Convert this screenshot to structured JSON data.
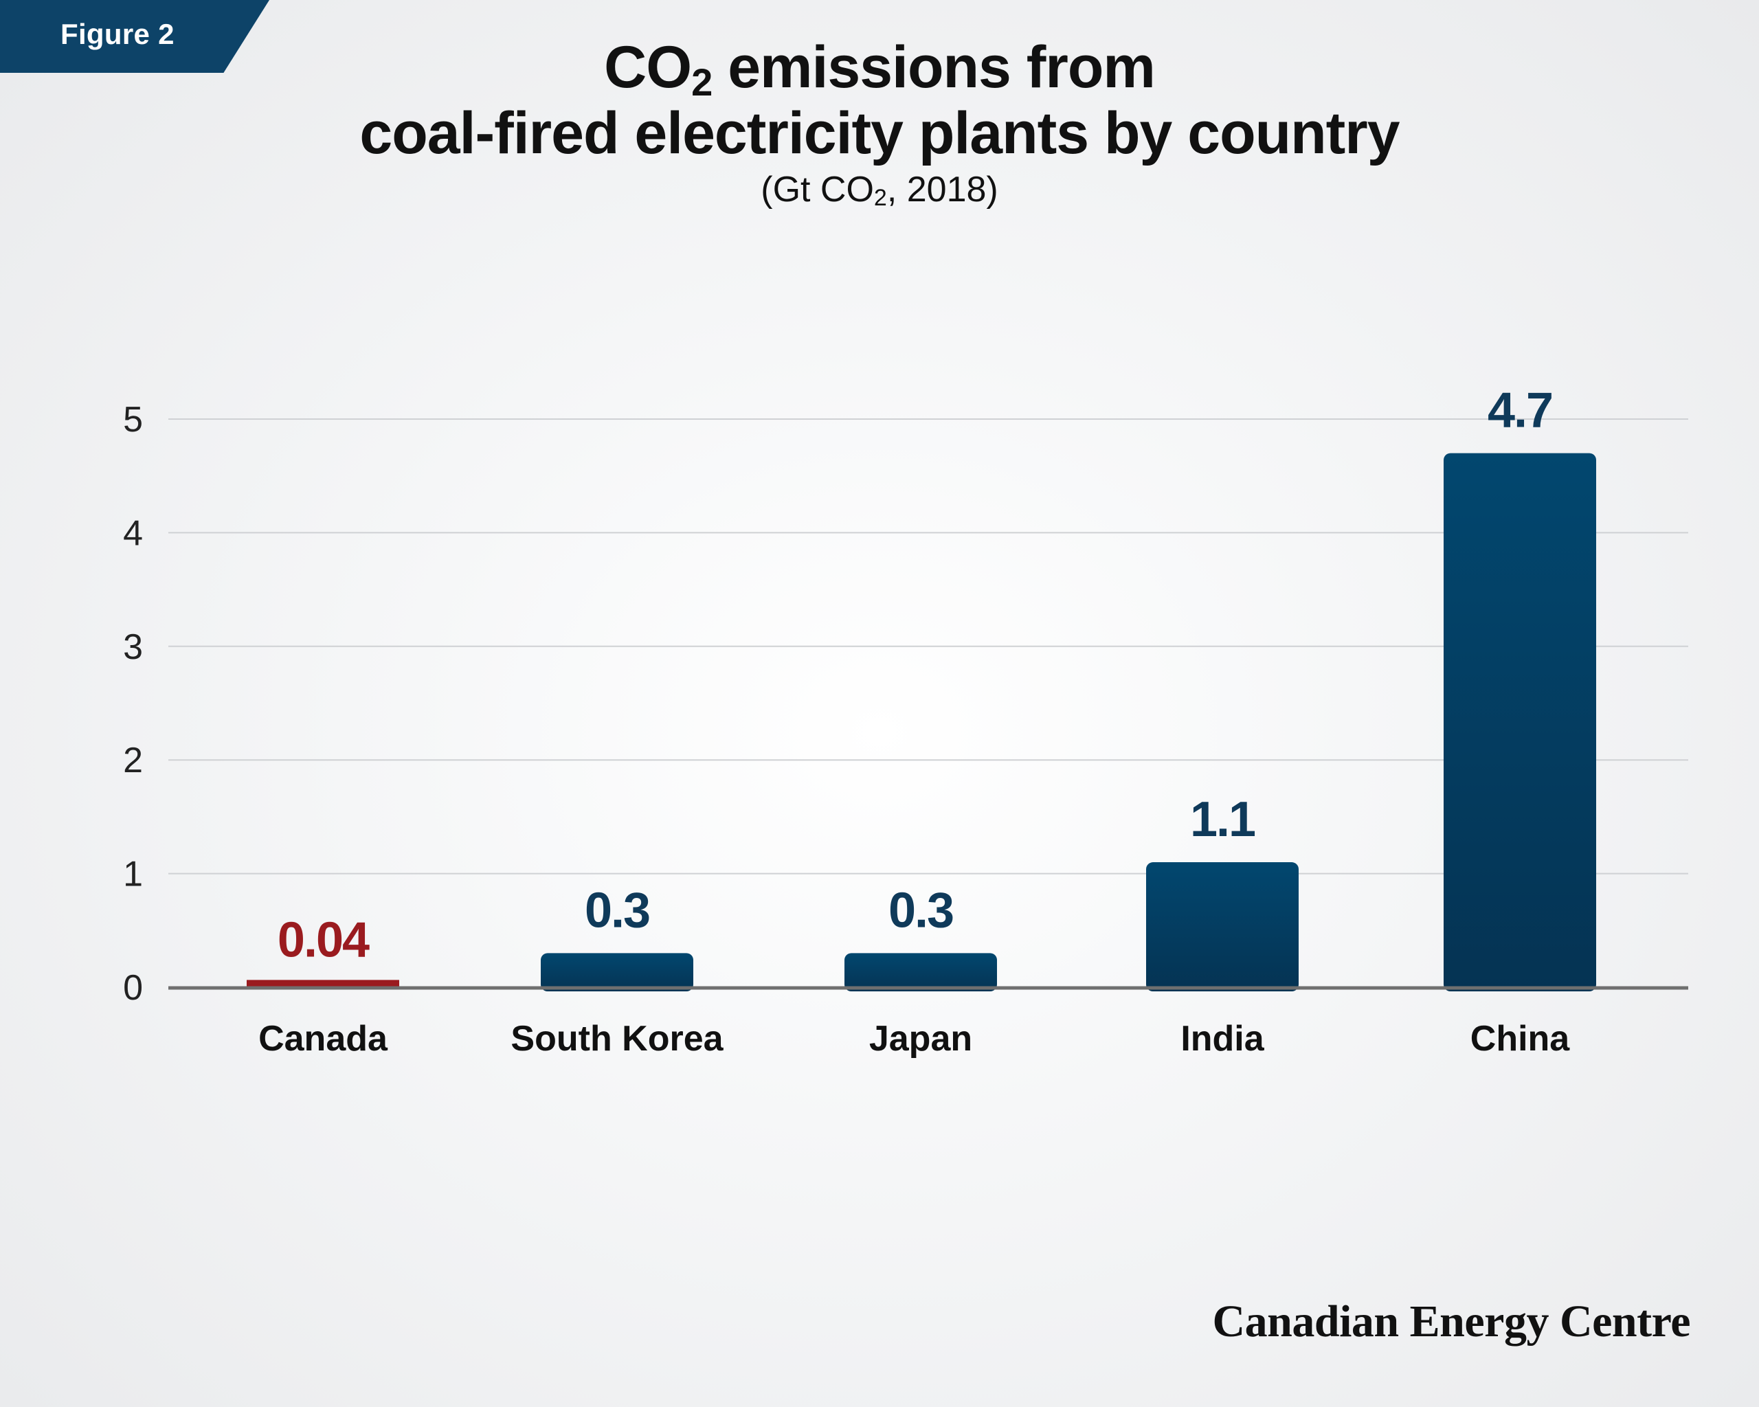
{
  "figure_label": "Figure 2",
  "title": {
    "part1_prefix": "CO",
    "part1_sub": "2",
    "part1_suffix": " emissions from",
    "line2": "coal-fired electricity plants by country"
  },
  "subtitle": {
    "prefix": "(Gt CO",
    "sub": "2",
    "suffix": ", 2018)"
  },
  "brand": "Canadian Energy Centre",
  "colors": {
    "bar_top": "#02476f",
    "bar_bottom": "#053353",
    "highlight": "#9a1b1f",
    "value_label": "#0f3a5a",
    "axis": "#6f6f6f",
    "grid": "#cfd1d4"
  },
  "chart_data": {
    "type": "bar",
    "categories": [
      "Canada",
      "South Korea",
      "Japan",
      "India",
      "China"
    ],
    "values": [
      0.04,
      0.3,
      0.3,
      1.1,
      4.7
    ],
    "value_labels": [
      "0.04",
      "0.3",
      "0.3",
      "1.1",
      "4.7"
    ],
    "highlight_category": "Canada",
    "y_ticks": [
      "0",
      "1",
      "2",
      "3",
      "4",
      "5"
    ],
    "ylim": [
      0,
      5
    ],
    "grid": true,
    "xlabel": "",
    "ylabel": ""
  }
}
